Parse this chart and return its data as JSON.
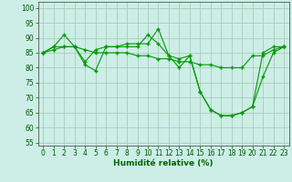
{
  "xlabel": "Humidité relative (%)",
  "background_color": "#cceee6",
  "grid_color": "#aaccbb",
  "line_color": "#009900",
  "xlim": [
    -0.5,
    23.5
  ],
  "ylim": [
    54,
    102
  ],
  "yticks": [
    55,
    60,
    65,
    70,
    75,
    80,
    85,
    90,
    95,
    100
  ],
  "xticks": [
    0,
    1,
    2,
    3,
    4,
    5,
    6,
    7,
    8,
    9,
    10,
    11,
    12,
    13,
    14,
    15,
    16,
    17,
    18,
    19,
    20,
    21,
    22,
    23
  ],
  "line1_x": [
    0,
    1,
    2,
    3,
    4,
    5,
    6,
    7,
    8,
    9,
    10,
    11,
    12,
    13,
    14,
    15,
    16,
    17,
    18,
    19,
    20,
    21,
    22,
    23
  ],
  "line1_y": [
    85,
    87,
    91,
    87,
    81,
    79,
    87,
    87,
    88,
    88,
    88,
    93,
    84,
    80,
    84,
    72,
    66,
    64,
    64,
    65,
    67,
    85,
    87,
    87
  ],
  "line2_x": [
    0,
    1,
    2,
    3,
    4,
    5,
    6,
    7,
    8,
    9,
    10,
    11,
    12,
    13,
    14,
    15,
    16,
    17,
    18,
    19,
    20,
    21,
    22,
    23
  ],
  "line2_y": [
    85,
    87,
    87,
    87,
    82,
    86,
    87,
    87,
    87,
    87,
    91,
    88,
    84,
    83,
    84,
    72,
    66,
    64,
    64,
    65,
    67,
    77,
    85,
    87
  ],
  "line3_x": [
    0,
    1,
    2,
    3,
    4,
    5,
    6,
    7,
    8,
    9,
    10,
    11,
    12,
    13,
    14,
    15,
    16,
    17,
    18,
    19,
    20,
    21,
    22,
    23
  ],
  "line3_y": [
    85,
    86,
    87,
    87,
    86,
    85,
    85,
    85,
    85,
    84,
    84,
    83,
    83,
    82,
    82,
    81,
    81,
    80,
    80,
    80,
    84,
    84,
    86,
    87
  ]
}
